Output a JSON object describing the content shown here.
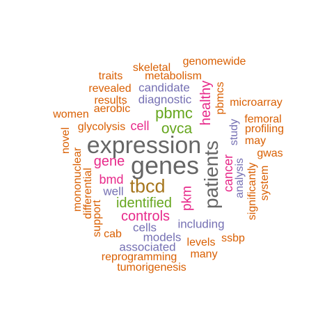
{
  "colors": {
    "orange": "#d95f02",
    "purple": "#7570b3",
    "magenta": "#e7298a",
    "green": "#66a61e",
    "brown": "#a6761d",
    "gray": "#666666",
    "background": "#ffffff"
  },
  "words": [
    {
      "text": "genomewide",
      "color": "orange"
    },
    {
      "text": "skeletal",
      "color": "orange"
    },
    {
      "text": "traits",
      "color": "orange"
    },
    {
      "text": "metabolism",
      "color": "orange"
    },
    {
      "text": "revealed",
      "color": "orange"
    },
    {
      "text": "candidate",
      "color": "purple"
    },
    {
      "text": "results",
      "color": "orange"
    },
    {
      "text": "diagnostic",
      "color": "purple"
    },
    {
      "text": "healthy",
      "color": "magenta"
    },
    {
      "text": "pbmcs",
      "color": "orange"
    },
    {
      "text": "microarray",
      "color": "orange"
    },
    {
      "text": "aerobic",
      "color": "orange"
    },
    {
      "text": "women",
      "color": "orange"
    },
    {
      "text": "pbmc",
      "color": "green"
    },
    {
      "text": "femoral",
      "color": "orange"
    },
    {
      "text": "glycolysis",
      "color": "orange"
    },
    {
      "text": "cell",
      "color": "magenta"
    },
    {
      "text": "ovca",
      "color": "green"
    },
    {
      "text": "profiling",
      "color": "orange"
    },
    {
      "text": "novel",
      "color": "orange"
    },
    {
      "text": "study",
      "color": "purple"
    },
    {
      "text": "may",
      "color": "orange"
    },
    {
      "text": "expression",
      "color": "gray"
    },
    {
      "text": "gwas",
      "color": "orange"
    },
    {
      "text": "genes",
      "color": "gray"
    },
    {
      "text": "gene",
      "color": "magenta"
    },
    {
      "text": "mononuclear",
      "color": "orange"
    },
    {
      "text": "patients",
      "color": "gray"
    },
    {
      "text": "cancer",
      "color": "magenta"
    },
    {
      "text": "analysis",
      "color": "purple"
    },
    {
      "text": "system",
      "color": "orange"
    },
    {
      "text": "significantly",
      "color": "orange"
    },
    {
      "text": "differential",
      "color": "orange"
    },
    {
      "text": "bmd",
      "color": "magenta"
    },
    {
      "text": "tbcd",
      "color": "brown"
    },
    {
      "text": "well",
      "color": "purple"
    },
    {
      "text": "pkm",
      "color": "magenta"
    },
    {
      "text": "identified",
      "color": "green"
    },
    {
      "text": "support",
      "color": "orange"
    },
    {
      "text": "controls",
      "color": "magenta"
    },
    {
      "text": "including",
      "color": "purple"
    },
    {
      "text": "cells",
      "color": "purple"
    },
    {
      "text": "cab",
      "color": "orange"
    },
    {
      "text": "models",
      "color": "purple"
    },
    {
      "text": "ssbp",
      "color": "orange"
    },
    {
      "text": "levels",
      "color": "orange"
    },
    {
      "text": "associated",
      "color": "purple"
    },
    {
      "text": "many",
      "color": "orange"
    },
    {
      "text": "reprogramming",
      "color": "orange"
    },
    {
      "text": "tumorigenesis",
      "color": "orange"
    }
  ]
}
